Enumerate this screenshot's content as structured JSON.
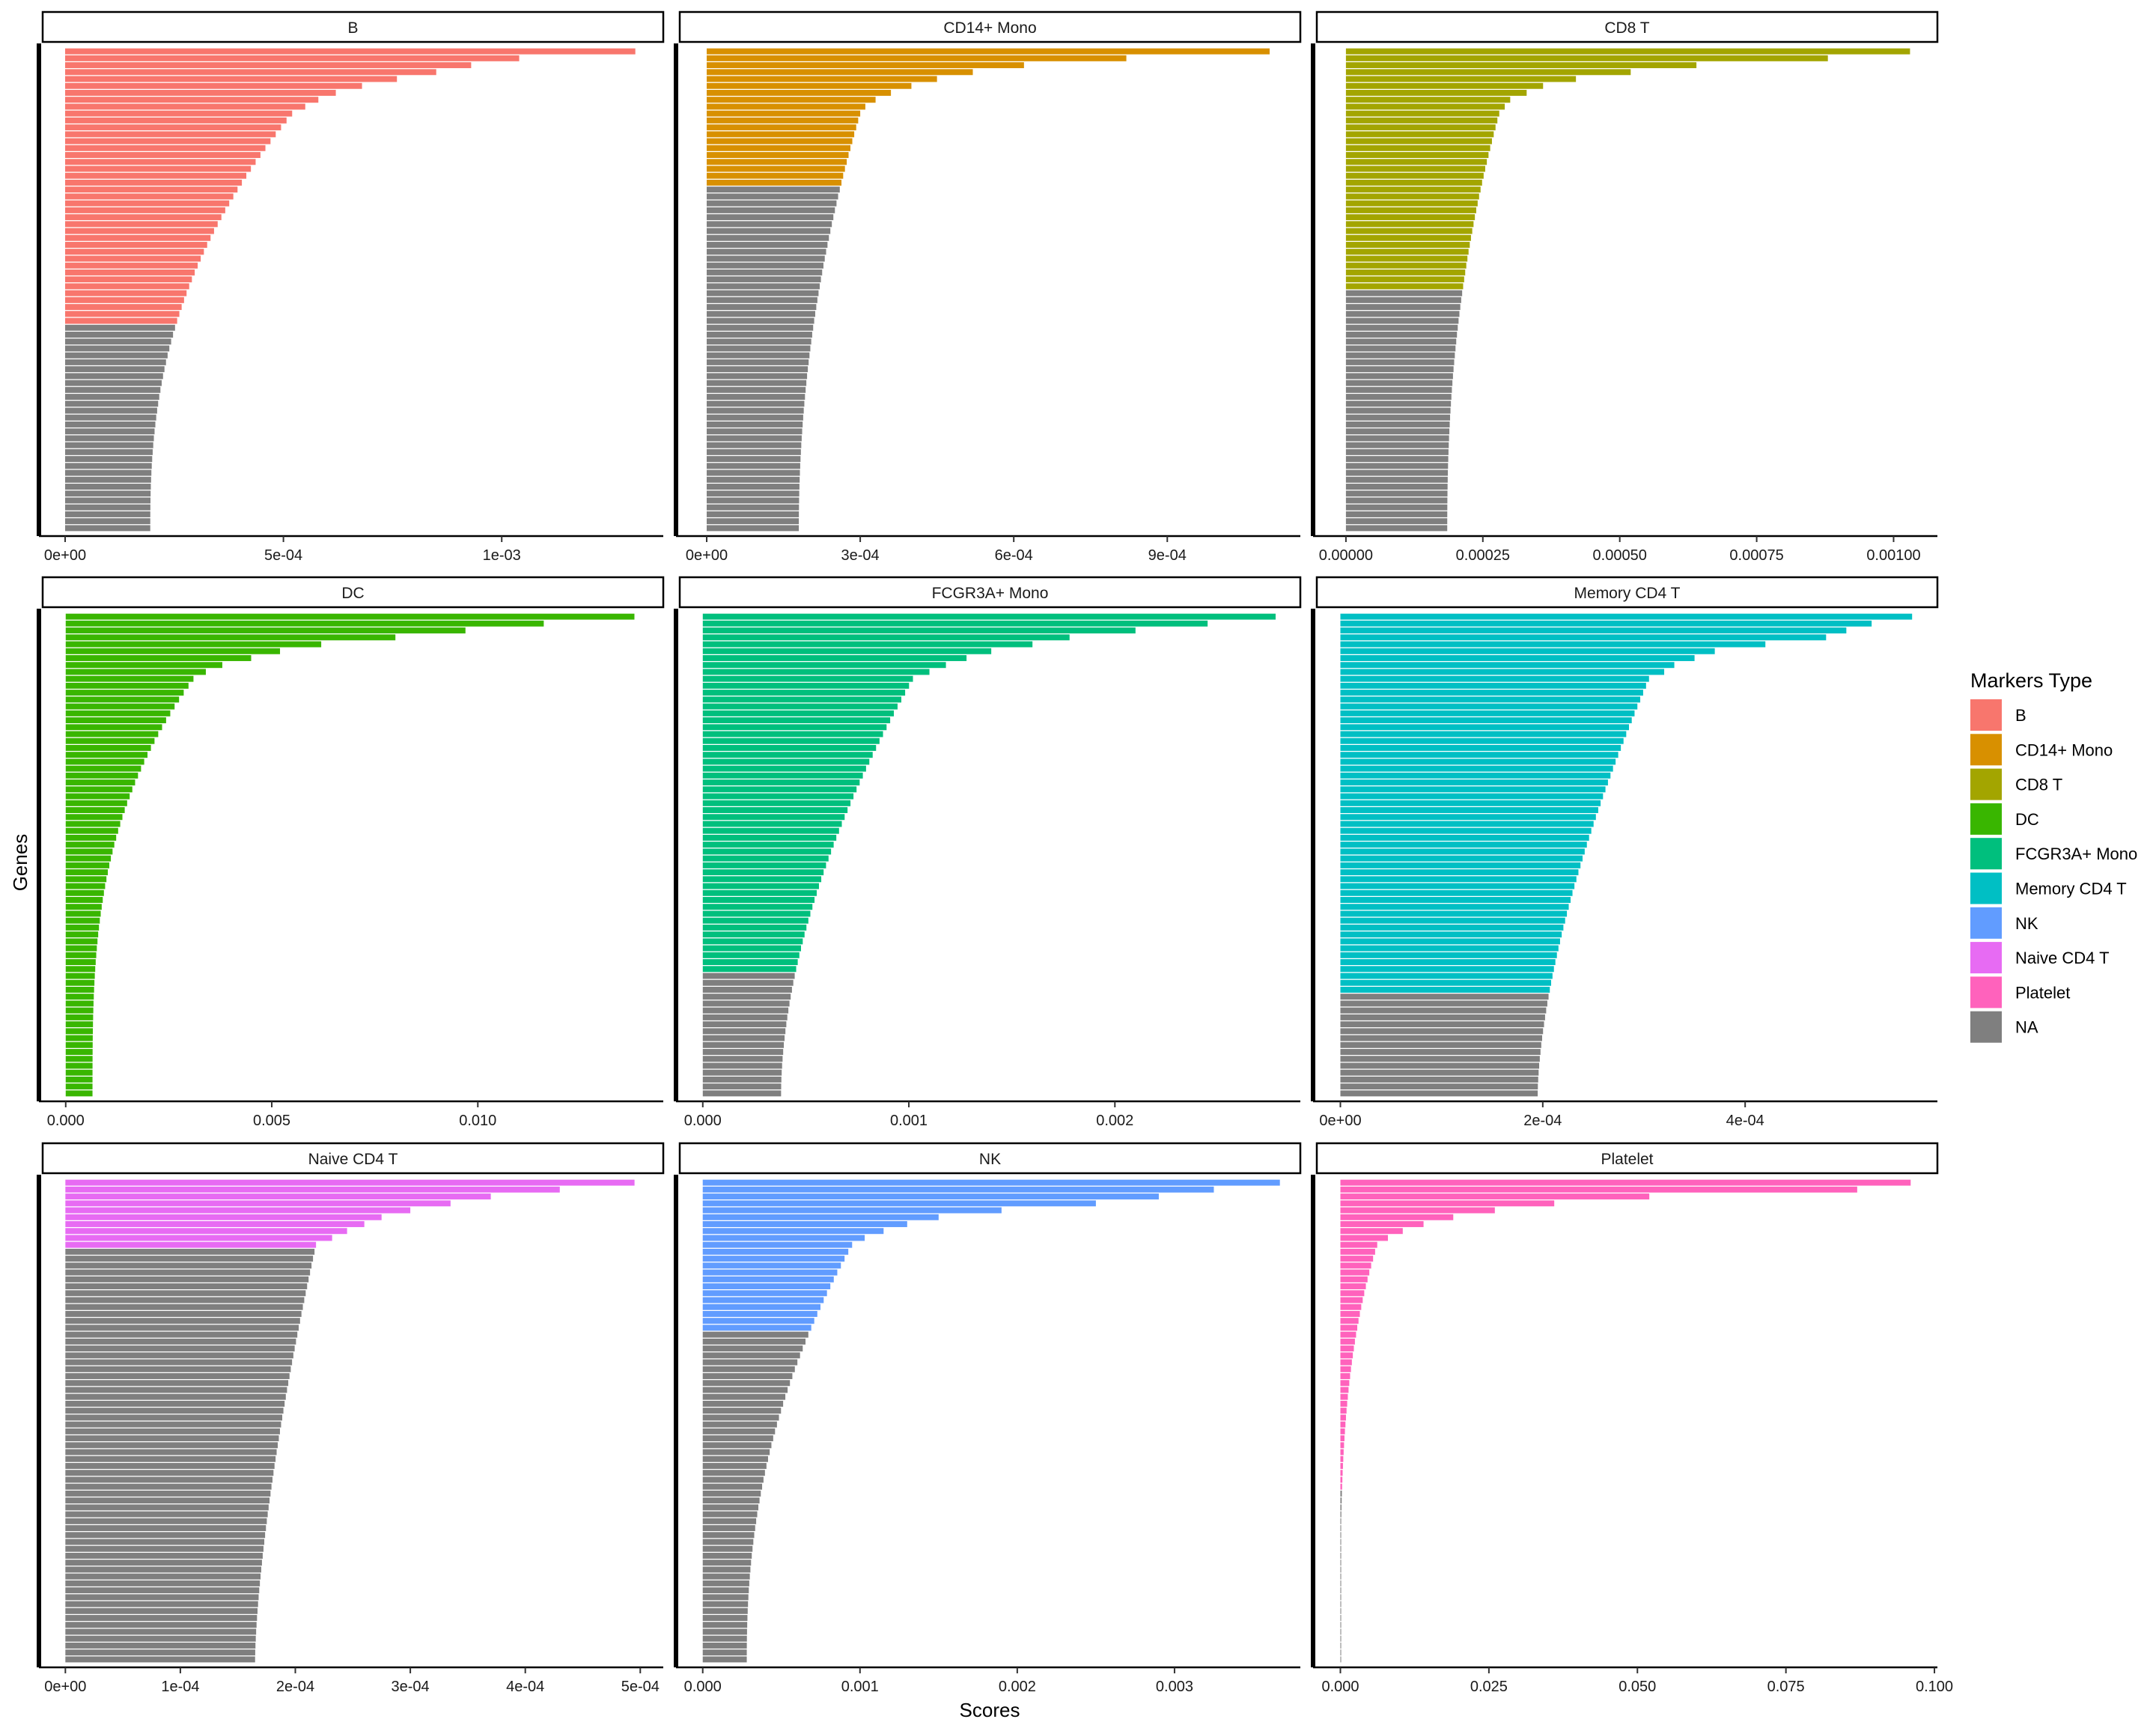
{
  "figure": {
    "xlabel": "Scores",
    "ylabel": "Genes"
  },
  "legend": {
    "title": "Markers Type",
    "placement": "right",
    "entries": [
      {
        "label": "B",
        "color": "#F8766D"
      },
      {
        "label": "CD14+ Mono",
        "color": "#D89000"
      },
      {
        "label": "CD8 T",
        "color": "#A3A500"
      },
      {
        "label": "DC",
        "color": "#39B600"
      },
      {
        "label": "FCGR3A+ Mono",
        "color": "#00BF7D"
      },
      {
        "label": "Memory CD4 T",
        "color": "#00BFC4"
      },
      {
        "label": "NK",
        "color": "#619CFF"
      },
      {
        "label": "Naive CD4 T",
        "color": "#E76BF3"
      },
      {
        "label": "Platelet",
        "color": "#FF62BC"
      },
      {
        "label": "NA",
        "color": "#7F7F7F"
      }
    ]
  },
  "chart_data": [
    {
      "type": "bar",
      "orientation": "horizontal",
      "facet": "B",
      "n_bars": 70,
      "n_marker": 40,
      "marker_color": "#F8766D",
      "na_color": "#7F7F7F",
      "values_top": [
        0.001306,
        0.00104,
        0.00093,
        0.00085,
        0.00076,
        0.00068,
        0.00062,
        0.00058,
        0.00055,
        0.00052
      ],
      "value_min": 0.000195,
      "marker_min": 0.000225,
      "curve": 2.4,
      "xlim": [
        -6e-05,
        0.00137
      ],
      "ticks": [
        {
          "v": 0,
          "label": "0e+00"
        },
        {
          "v": 0.0005,
          "label": "5e-04"
        },
        {
          "v": 0.001,
          "label": "1e-03"
        }
      ]
    },
    {
      "type": "bar",
      "orientation": "horizontal",
      "facet": "CD14+ Mono",
      "n_bars": 70,
      "n_marker": 20,
      "marker_color": "#D89000",
      "na_color": "#7F7F7F",
      "values_top": [
        0.0011,
        0.00082,
        0.00062,
        0.00052,
        0.00045,
        0.0004,
        0.00036,
        0.00033,
        0.00031,
        0.0003
      ],
      "value_min": 0.00018,
      "marker_min": 0.000235,
      "curve": 2.0,
      "xlim": [
        -6e-05,
        0.00116
      ],
      "ticks": [
        {
          "v": 0,
          "label": "0e+00"
        },
        {
          "v": 0.0003,
          "label": "3e-04"
        },
        {
          "v": 0.0006,
          "label": "6e-04"
        },
        {
          "v": 0.0009,
          "label": "9e-04"
        }
      ]
    },
    {
      "type": "bar",
      "orientation": "horizontal",
      "facet": "CD8 T",
      "n_bars": 70,
      "n_marker": 35,
      "marker_color": "#A3A500",
      "na_color": "#7F7F7F",
      "values_top": [
        0.00103,
        0.00088,
        0.00064,
        0.00052,
        0.00042,
        0.00036,
        0.00033,
        0.0003,
        0.00029,
        0.00028
      ],
      "value_min": 0.000185,
      "marker_min": 0.000215,
      "curve": 2.2,
      "xlim": [
        -6e-05,
        0.00108
      ],
      "ticks": [
        {
          "v": 0,
          "label": "0.00000"
        },
        {
          "v": 0.00025,
          "label": "0.00025"
        },
        {
          "v": 0.0005,
          "label": "0.00050"
        },
        {
          "v": 0.00075,
          "label": "0.00075"
        },
        {
          "v": 0.001,
          "label": "0.00100"
        }
      ]
    },
    {
      "type": "bar",
      "orientation": "horizontal",
      "facet": "DC",
      "n_bars": 70,
      "n_marker": 70,
      "marker_color": "#39B600",
      "na_color": "#7F7F7F",
      "values_top": [
        0.0138,
        0.0116,
        0.0097,
        0.008,
        0.0062,
        0.0052,
        0.0045,
        0.0038,
        0.0034,
        0.0031
      ],
      "value_min": 0.00065,
      "marker_min": 0.00065,
      "curve": 3.0,
      "xlim": [
        -0.00065,
        0.0145
      ],
      "ticks": [
        {
          "v": 0,
          "label": "0.000"
        },
        {
          "v": 0.005,
          "label": "0.005"
        },
        {
          "v": 0.01,
          "label": "0.010"
        }
      ]
    },
    {
      "type": "bar",
      "orientation": "horizontal",
      "facet": "FCGR3A+ Mono",
      "n_bars": 70,
      "n_marker": 52,
      "marker_color": "#00BF7D",
      "na_color": "#7F7F7F",
      "values_top": [
        0.00278,
        0.00245,
        0.0021,
        0.00178,
        0.0016,
        0.0014,
        0.00128,
        0.00118,
        0.0011,
        0.00102
      ],
      "value_min": 0.00038,
      "marker_min": 0.00045,
      "curve": 1.8,
      "xlim": [
        -0.00013,
        0.0029
      ],
      "ticks": [
        {
          "v": 0,
          "label": "0.000"
        },
        {
          "v": 0.001,
          "label": "0.001"
        },
        {
          "v": 0.002,
          "label": "0.002"
        }
      ]
    },
    {
      "type": "bar",
      "orientation": "horizontal",
      "facet": "Memory CD4 T",
      "n_bars": 70,
      "n_marker": 55,
      "marker_color": "#00BFC4",
      "na_color": "#7F7F7F",
      "values_top": [
        0.000565,
        0.000525,
        0.0005,
        0.00048,
        0.00042,
        0.00037,
        0.00035,
        0.00033,
        0.00032,
        0.000305
      ],
      "value_min": 0.000195,
      "marker_min": 0.00021,
      "curve": 1.6,
      "xlim": [
        -2.7e-05,
        0.00059
      ],
      "ticks": [
        {
          "v": 0,
          "label": "0e+00"
        },
        {
          "v": 0.0002,
          "label": "2e-04"
        },
        {
          "v": 0.0004,
          "label": "4e-04"
        }
      ]
    },
    {
      "type": "bar",
      "orientation": "horizontal",
      "facet": "Naive CD4 T",
      "n_bars": 70,
      "n_marker": 10,
      "marker_color": "#E76BF3",
      "na_color": "#7F7F7F",
      "values_top": [
        0.000495,
        0.00043,
        0.00037,
        0.000335,
        0.0003,
        0.000275,
        0.00026,
        0.000245,
        0.000232,
        0.000218
      ],
      "value_min": 0.000165,
      "marker_min": 0.000218,
      "curve": 1.5,
      "xlim": [
        -2.3e-05,
        0.00052
      ],
      "ticks": [
        {
          "v": 0,
          "label": "0e+00"
        },
        {
          "v": 0.0001,
          "label": "1e-04"
        },
        {
          "v": 0.0002,
          "label": "2e-04"
        },
        {
          "v": 0.0003,
          "label": "3e-04"
        },
        {
          "v": 0.0004,
          "label": "4e-04"
        },
        {
          "v": 0.0005,
          "label": "5e-04"
        }
      ]
    },
    {
      "type": "bar",
      "orientation": "horizontal",
      "facet": "NK",
      "n_bars": 70,
      "n_marker": 22,
      "marker_color": "#619CFF",
      "na_color": "#7F7F7F",
      "values_top": [
        0.00367,
        0.00325,
        0.0029,
        0.0025,
        0.0019,
        0.0015,
        0.0013,
        0.00115,
        0.00103,
        0.00095
      ],
      "value_min": 0.00028,
      "marker_min": 0.00055,
      "curve": 2.2,
      "xlim": [
        -0.00017,
        0.0038
      ],
      "ticks": [
        {
          "v": 0,
          "label": "0.000"
        },
        {
          "v": 0.001,
          "label": "0.001"
        },
        {
          "v": 0.002,
          "label": "0.002"
        },
        {
          "v": 0.003,
          "label": "0.003"
        }
      ]
    },
    {
      "type": "bar",
      "orientation": "horizontal",
      "facet": "Platelet",
      "n_bars": 70,
      "n_marker": 45,
      "marker_color": "#FF62BC",
      "na_color": "#7F7F7F",
      "values_top": [
        0.096,
        0.087,
        0.052,
        0.036,
        0.026,
        0.019,
        0.014,
        0.0105,
        0.008,
        0.0062
      ],
      "value_min": 0.0,
      "marker_min": 0.0,
      "curve": 3.5,
      "xlim": [
        -0.0046,
        0.1005
      ],
      "ticks": [
        {
          "v": 0,
          "label": "0.000"
        },
        {
          "v": 0.025,
          "label": "0.025"
        },
        {
          "v": 0.05,
          "label": "0.050"
        },
        {
          "v": 0.075,
          "label": "0.075"
        },
        {
          "v": 0.1,
          "label": "0.100"
        }
      ]
    }
  ]
}
